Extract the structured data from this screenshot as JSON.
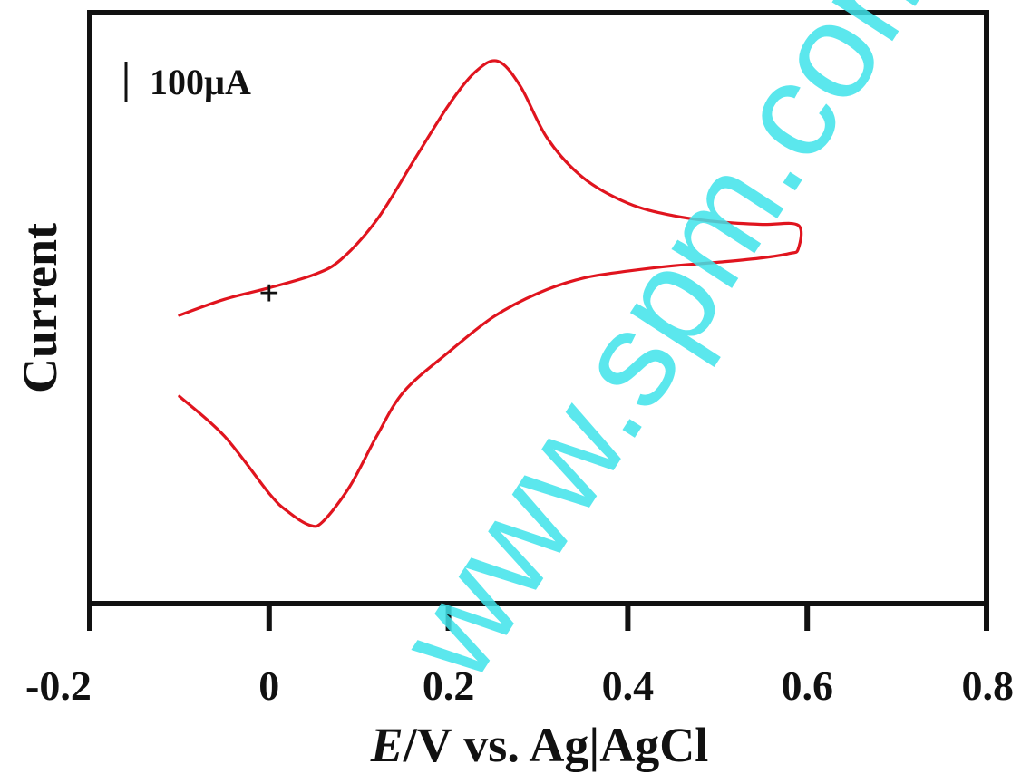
{
  "chart_data": {
    "type": "line",
    "title": "",
    "xlabel": "E/V vs. Ag|AgCl",
    "xlabel_italic_part": "E",
    "xlabel_rest": "/V vs. Ag|AgCl",
    "ylabel": "Current",
    "xlim": [
      -0.2,
      0.8
    ],
    "x_ticks": [
      -0.2,
      0,
      0.2,
      0.4,
      0.6,
      0.8
    ],
    "x_tick_labels": [
      "-0.2",
      "0",
      "0.2",
      "0.4",
      "0.6",
      "0.8"
    ],
    "y_units": "µA",
    "ylim": [
      -355,
      315
    ],
    "grid": false,
    "scale_bar": {
      "label": "100µA",
      "value": 100
    },
    "start_marker": {
      "symbol": "+",
      "x": 0.0,
      "y": 0
    },
    "series_color": "#e0141e",
    "series": [
      {
        "name": "",
        "x": [
          -0.1,
          -0.05,
          0.0,
          0.05,
          0.08,
          0.12,
          0.16,
          0.2,
          0.23,
          0.255,
          0.28,
          0.31,
          0.35,
          0.4,
          0.45,
          0.5,
          0.55,
          0.59,
          0.59,
          0.58,
          0.55,
          0.5,
          0.45,
          0.4,
          0.35,
          0.3,
          0.25,
          0.2,
          0.15,
          0.12,
          0.09,
          0.06,
          0.045,
          0.02,
          0.0,
          -0.05,
          -0.1
        ],
        "y": [
          -28,
          -10,
          3,
          18,
          35,
          80,
          145,
          210,
          248,
          260,
          232,
          173,
          128,
          99,
          85,
          78,
          75,
          74,
          47,
          42,
          37,
          32,
          28,
          22,
          14,
          -3,
          -30,
          -70,
          -115,
          -165,
          -222,
          -262,
          -266,
          -250,
          -230,
          -165,
          -120
        ]
      }
    ]
  },
  "watermark": {
    "text": "www.spm.com.cn",
    "color": "#3fe3ea"
  }
}
